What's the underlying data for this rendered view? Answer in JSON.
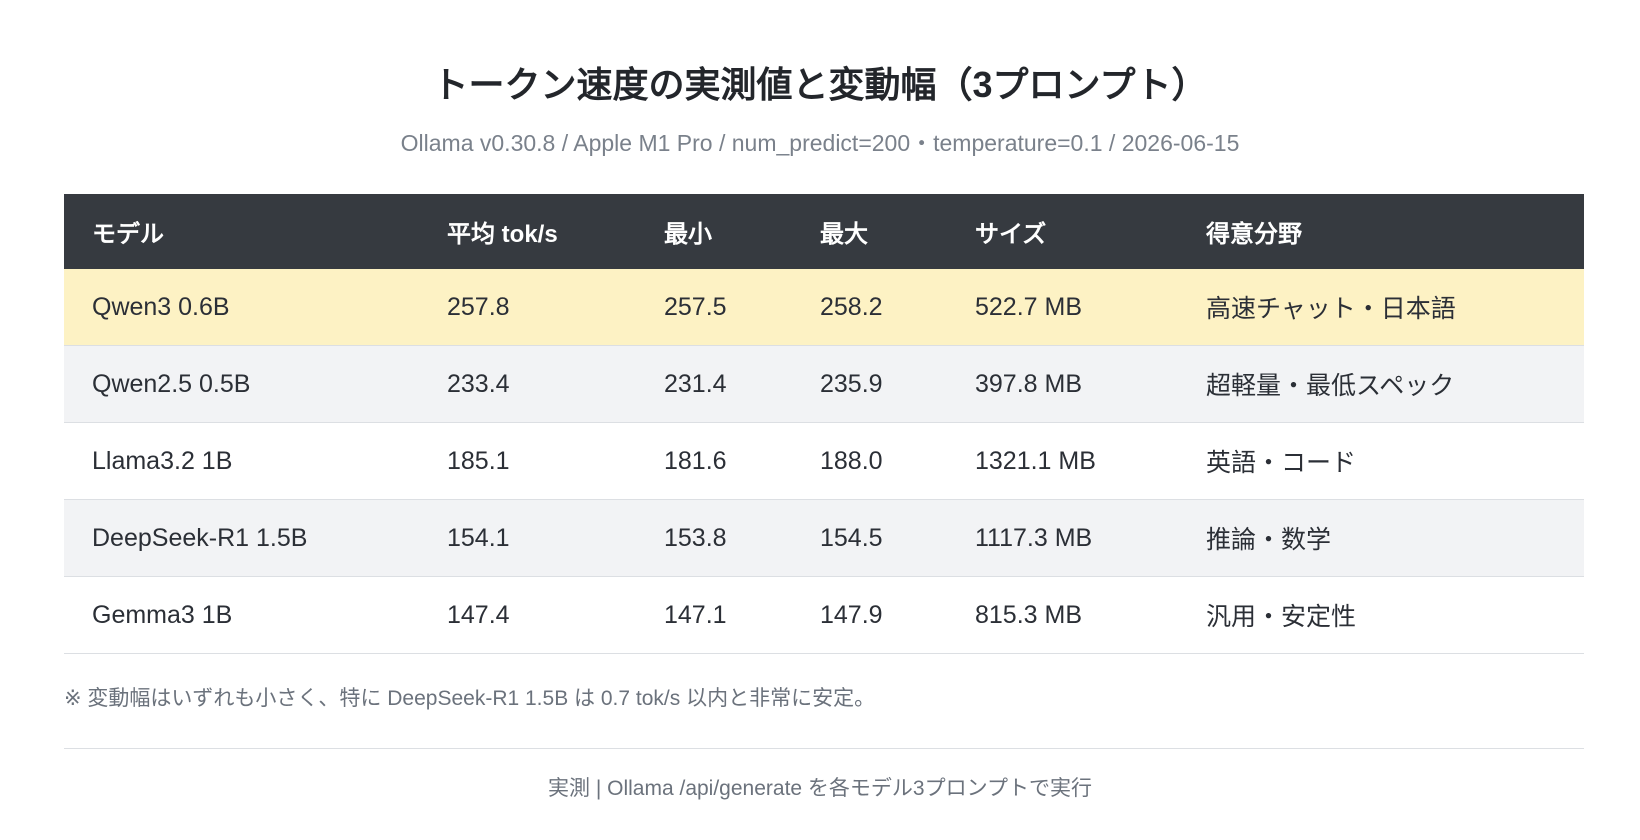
{
  "title": "トークン速度の実測値と変動幅（3プロンプト）",
  "subtitle": "Ollama v0.30.8 / Apple M1 Pro / num_predict=200・temperature=0.1 / 2026-06-15",
  "table": {
    "header": [
      "モデル",
      "平均 tok/s",
      "最小",
      "最大",
      "サイズ",
      "得意分野"
    ],
    "rows": [
      [
        "Qwen3 0.6B",
        "257.8",
        "257.5",
        "258.2",
        "522.7 MB",
        "高速チャット・日本語"
      ],
      [
        "Qwen2.5 0.5B",
        "233.4",
        "231.4",
        "235.9",
        "397.8 MB",
        "超軽量・最低スペック"
      ],
      [
        "Llama3.2 1B",
        "185.1",
        "181.6",
        "188.0",
        "1321.1 MB",
        "英語・コード"
      ],
      [
        "DeepSeek-R1 1.5B",
        "154.1",
        "153.8",
        "154.5",
        "1117.3 MB",
        "推論・数学"
      ],
      [
        "Gemma3 1B",
        "147.4",
        "147.1",
        "147.9",
        "815.3 MB",
        "汎用・安定性"
      ]
    ]
  },
  "note": "※ 変動幅はいずれも小さく、特に DeepSeek-R1 1.5B は 0.7 tok/s 以内と非常に安定。",
  "footer": "実測 | Ollama /api/generate を各モデル3プロンプトで実行"
}
